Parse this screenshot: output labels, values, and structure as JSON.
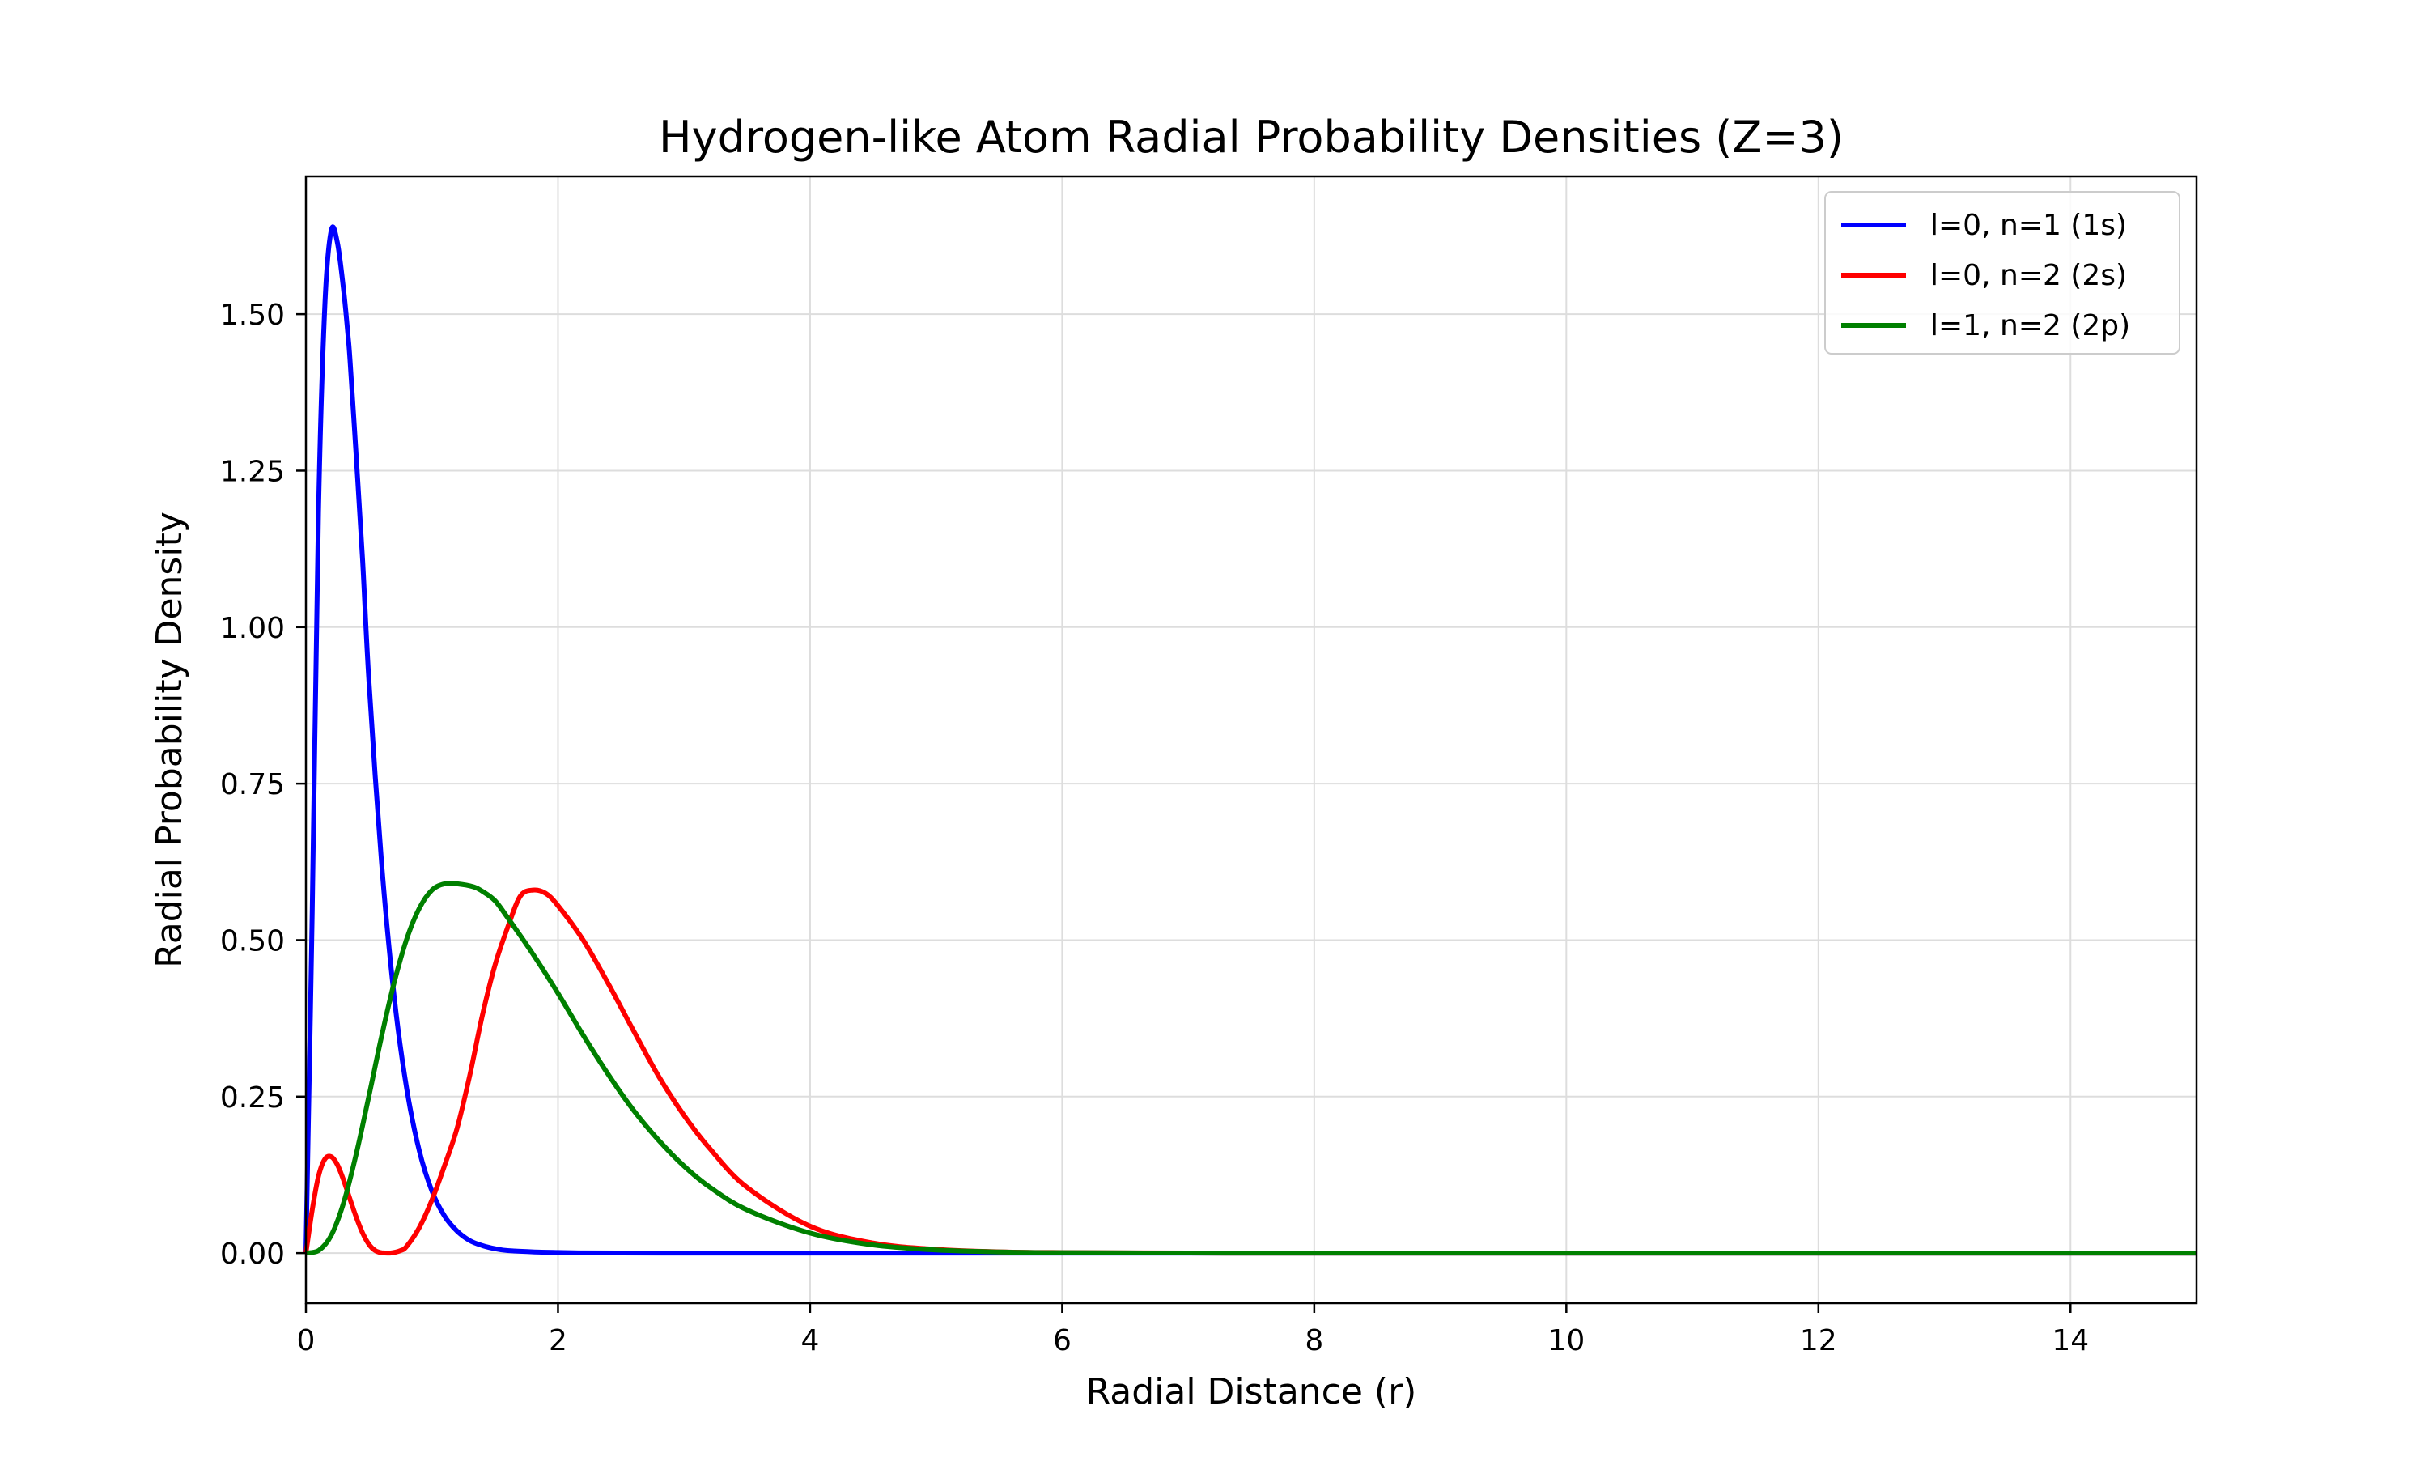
{
  "chart_data": {
    "type": "line",
    "title": "Hydrogen-like Atom Radial Probability Densities (Z=3)",
    "xlabel": "Radial Distance (r)",
    "ylabel": "Radial Probability Density",
    "xlim": [
      0,
      15
    ],
    "ylim": [
      -0.08,
      1.72
    ],
    "xticks": [
      0,
      2,
      4,
      6,
      8,
      10,
      12,
      14
    ],
    "xtick_labels": [
      "0",
      "2",
      "4",
      "6",
      "8",
      "10",
      "12",
      "14"
    ],
    "yticks": [
      0.0,
      0.25,
      0.5,
      0.75,
      1.0,
      1.25,
      1.5
    ],
    "ytick_labels": [
      "0.00",
      "0.25",
      "0.50",
      "0.75",
      "1.00",
      "1.25",
      "1.50"
    ],
    "grid": true,
    "legend_position": "top-right",
    "series": [
      {
        "name": "l=0, n=1 (1s)",
        "color": "#0000ff",
        "x": [
          0,
          0.05,
          0.1,
          0.15,
          0.2,
          0.25,
          0.3,
          0.333,
          0.35,
          0.4,
          0.45,
          0.5,
          0.6,
          0.7,
          0.8,
          0.9,
          1.0,
          1.1,
          1.2,
          1.3,
          1.4,
          1.5,
          1.6,
          1.8,
          2.0,
          2.2,
          2.5,
          3.0,
          3.5,
          4.0,
          5.0,
          6.0,
          8.0,
          10.0,
          12.0,
          15.0
        ],
        "y": [
          0,
          0.546,
          1.185,
          1.513,
          1.633,
          1.614,
          1.537,
          1.468,
          1.426,
          1.27,
          1.106,
          0.914,
          0.624,
          0.41,
          0.262,
          0.163,
          0.099,
          0.059,
          0.035,
          0.02,
          0.012,
          0.007,
          0.004,
          0.002,
          0.001,
          0.0003,
          0.0001,
          0,
          0,
          0,
          0,
          0,
          0,
          0,
          0,
          0
        ]
      },
      {
        "name": "l=0, n=2 (2s)",
        "color": "#ff0000",
        "x": [
          0,
          0.05,
          0.1,
          0.15,
          0.2,
          0.25,
          0.3,
          0.35,
          0.4,
          0.45,
          0.5,
          0.55,
          0.6,
          0.667,
          0.75,
          0.8,
          0.9,
          1.0,
          1.1,
          1.2,
          1.3,
          1.4,
          1.5,
          1.6,
          1.7,
          1.8,
          1.9,
          2.0,
          2.2,
          2.4,
          2.6,
          2.8,
          3.0,
          3.2,
          3.5,
          4.0,
          4.5,
          5.0,
          5.5,
          6.0,
          7.0,
          8.0,
          10.0,
          15.0
        ],
        "y": [
          0,
          0.069,
          0.123,
          0.15,
          0.154,
          0.141,
          0.116,
          0.086,
          0.057,
          0.032,
          0.014,
          0.004,
          0.0005,
          0,
          0.004,
          0.011,
          0.041,
          0.085,
          0.14,
          0.2,
          0.284,
          0.38,
          0.46,
          0.52,
          0.57,
          0.58,
          0.575,
          0.555,
          0.5,
          0.43,
          0.355,
          0.282,
          0.22,
          0.168,
          0.105,
          0.043,
          0.016,
          0.006,
          0.002,
          0.0008,
          0.0001,
          0,
          0,
          0
        ]
      },
      {
        "name": "l=1, n=2 (2p)",
        "color": "#008000",
        "x": [
          0,
          0.1,
          0.2,
          0.3,
          0.4,
          0.5,
          0.6,
          0.7,
          0.8,
          0.9,
          1.0,
          1.1,
          1.2,
          1.333,
          1.4,
          1.5,
          1.6,
          1.8,
          2.0,
          2.2,
          2.4,
          2.6,
          2.8,
          3.0,
          3.2,
          3.5,
          4.0,
          4.5,
          5.0,
          5.5,
          6.0,
          7.0,
          8.0,
          10.0,
          15.0
        ],
        "y": [
          0,
          0.004,
          0.028,
          0.081,
          0.159,
          0.251,
          0.346,
          0.432,
          0.502,
          0.551,
          0.58,
          0.59,
          0.59,
          0.585,
          0.578,
          0.563,
          0.536,
          0.478,
          0.415,
          0.348,
          0.285,
          0.228,
          0.18,
          0.139,
          0.106,
          0.069,
          0.032,
          0.013,
          0.005,
          0.0018,
          0.0006,
          0.0001,
          0,
          0,
          0
        ]
      }
    ]
  }
}
